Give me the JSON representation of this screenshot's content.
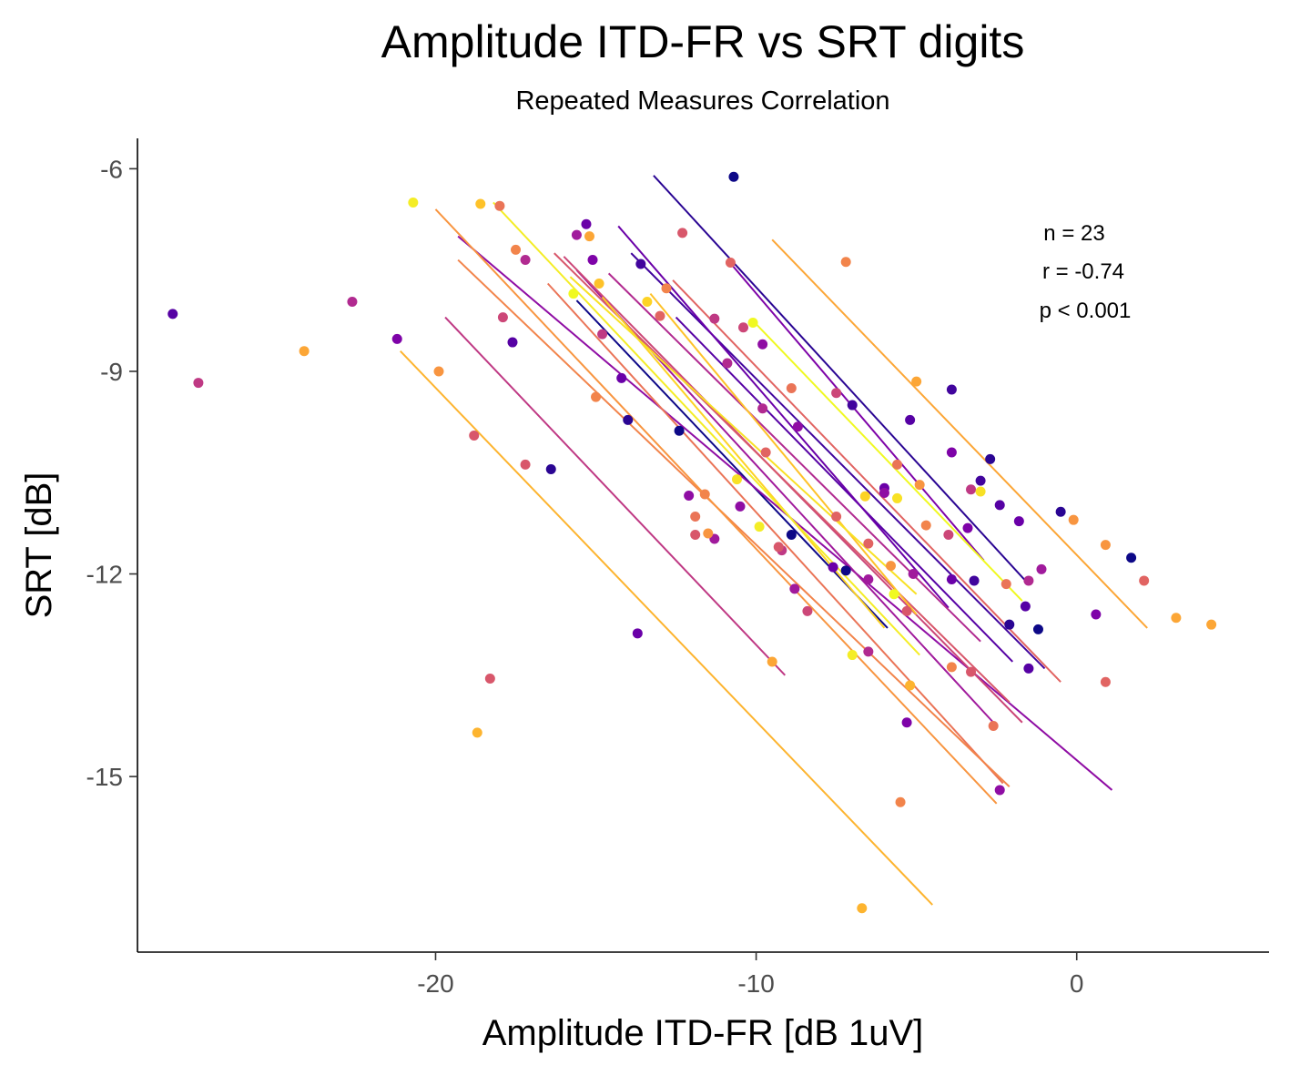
{
  "chart_data": {
    "type": "scatter",
    "title": "Amplitude ITD-FR vs SRT digits",
    "subtitle": "Repeated Measures Correlation",
    "xlabel": "Amplitude ITD-FR [dB 1uV]",
    "ylabel": "SRT [dB]",
    "xlim": [
      -29.3,
      6.0
    ],
    "ylim": [
      -17.6,
      -5.55
    ],
    "xticks": [
      -20,
      -10,
      0
    ],
    "xtick_labels": [
      "-20",
      "-10",
      "0"
    ],
    "yticks": [
      -6,
      -9,
      -12,
      -15
    ],
    "ytick_labels": [
      "-6",
      "-9",
      "-12",
      "-15"
    ],
    "grid": false,
    "legend": "none",
    "annotations": [
      "n = 23",
      "r = -0.74",
      "p < 0.001"
    ],
    "colormap": "plasma",
    "series": [
      {
        "color": "#0d0887",
        "points": [
          [
            -10.7,
            -6.12
          ],
          [
            -12.4,
            -9.88
          ],
          [
            -8.9,
            -11.42
          ],
          [
            -7.2,
            -11.95
          ],
          [
            1.7,
            -11.76
          ],
          [
            -1.2,
            -12.82
          ]
        ],
        "line": [
          [
            -15.6,
            -7.95
          ],
          [
            -5.9,
            -12.8
          ]
        ]
      },
      {
        "color": "#2a0593",
        "points": [
          [
            -16.4,
            -10.45
          ],
          [
            -14.0,
            -9.72
          ],
          [
            -2.7,
            -10.3
          ],
          [
            -0.5,
            -11.08
          ],
          [
            -2.1,
            -12.75
          ]
        ],
        "line": [
          [
            -13.2,
            -6.1
          ],
          [
            -1.6,
            -12.1
          ]
        ]
      },
      {
        "color": "#41049d",
        "points": [
          [
            -13.6,
            -7.41
          ],
          [
            -7.0,
            -9.5
          ],
          [
            -3.9,
            -9.27
          ],
          [
            -3.0,
            -10.62
          ],
          [
            -3.2,
            -12.1
          ]
        ],
        "line": [
          [
            -13.9,
            -7.25
          ],
          [
            -1.0,
            -13.4
          ]
        ]
      },
      {
        "color": "#5601a4",
        "points": [
          [
            -28.2,
            -8.15
          ],
          [
            -17.6,
            -8.57
          ],
          [
            -5.2,
            -9.72
          ],
          [
            -2.4,
            -10.98
          ],
          [
            -1.6,
            -12.48
          ],
          [
            -1.5,
            -13.4
          ]
        ],
        "line": [
          [
            -12.5,
            -8.2
          ],
          [
            -2.0,
            -13.3
          ]
        ]
      },
      {
        "color": "#6a00a8",
        "points": [
          [
            -15.3,
            -6.82
          ],
          [
            -14.2,
            -9.1
          ],
          [
            -13.7,
            -12.88
          ],
          [
            -7.6,
            -11.9
          ],
          [
            -6.0,
            -10.73
          ],
          [
            -3.9,
            -12.08
          ],
          [
            -1.8,
            -11.22
          ]
        ],
        "line": [
          [
            -14.3,
            -6.85
          ],
          [
            -4.0,
            -12.5
          ]
        ]
      },
      {
        "color": "#7e03a8",
        "points": [
          [
            -21.2,
            -8.52
          ],
          [
            -15.1,
            -7.35
          ],
          [
            -5.3,
            -14.2
          ],
          [
            -3.9,
            -10.2
          ],
          [
            -3.4,
            -11.32
          ],
          [
            0.6,
            -12.6
          ]
        ],
        "line": [
          [
            -10.8,
            -7.4
          ],
          [
            -2.9,
            -11.8
          ]
        ]
      },
      {
        "color": "#8f0da4",
        "points": [
          [
            -12.1,
            -10.84
          ],
          [
            -10.5,
            -11.0
          ],
          [
            -9.8,
            -8.6
          ],
          [
            -8.7,
            -9.82
          ],
          [
            -6.0,
            -10.8
          ],
          [
            -2.4,
            -15.2
          ]
        ],
        "line": [
          [
            -19.3,
            -7.0
          ],
          [
            1.1,
            -15.2
          ]
        ]
      },
      {
        "color": "#a01a9c",
        "points": [
          [
            -15.6,
            -6.98
          ],
          [
            -11.3,
            -11.48
          ],
          [
            -8.8,
            -12.22
          ],
          [
            -6.5,
            -12.08
          ],
          [
            -5.1,
            -12.0
          ],
          [
            -1.1,
            -11.93
          ]
        ],
        "line": [
          [
            -15.6,
            -7.5
          ],
          [
            -2.6,
            -14.2
          ]
        ]
      },
      {
        "color": "#b12a90",
        "points": [
          [
            -22.6,
            -7.97
          ],
          [
            -17.2,
            -7.35
          ],
          [
            -10.9,
            -8.88
          ],
          [
            -9.8,
            -9.55
          ],
          [
            -6.5,
            -13.15
          ],
          [
            -1.5,
            -12.1
          ]
        ],
        "line": [
          [
            -14.6,
            -7.55
          ],
          [
            -3.0,
            -13.0
          ]
        ]
      },
      {
        "color": "#bf3984",
        "points": [
          [
            -27.4,
            -9.17
          ],
          [
            -14.8,
            -8.45
          ],
          [
            -11.3,
            -8.22
          ],
          [
            -9.2,
            -11.65
          ],
          [
            -3.3,
            -10.75
          ]
        ],
        "line": [
          [
            -19.7,
            -8.2
          ],
          [
            -9.1,
            -13.5
          ]
        ]
      },
      {
        "color": "#cc4778",
        "points": [
          [
            -17.9,
            -8.2
          ],
          [
            -10.4,
            -8.35
          ],
          [
            -8.4,
            -12.55
          ],
          [
            -7.5,
            -9.32
          ],
          [
            -4.0,
            -11.42
          ]
        ],
        "line": [
          [
            -16.0,
            -7.3
          ],
          [
            -1.7,
            -14.2
          ]
        ]
      },
      {
        "color": "#d8576b",
        "points": [
          [
            -18.8,
            -9.95
          ],
          [
            -18.3,
            -13.55
          ],
          [
            -17.2,
            -10.38
          ],
          [
            -11.9,
            -11.42
          ],
          [
            -12.3,
            -6.95
          ],
          [
            -9.3,
            -11.6
          ],
          [
            -5.3,
            -12.55
          ],
          [
            -3.3,
            -13.45
          ]
        ],
        "line": [
          [
            -16.3,
            -7.25
          ],
          [
            -2.1,
            -13.9
          ]
        ]
      },
      {
        "color": "#e16462",
        "points": [
          [
            -13.0,
            -8.18
          ],
          [
            -10.8,
            -7.39
          ],
          [
            -9.7,
            -10.2
          ],
          [
            -7.5,
            -11.15
          ],
          [
            -6.5,
            -11.55
          ],
          [
            0.9,
            -13.6
          ],
          [
            2.1,
            -12.1
          ]
        ],
        "line": [
          [
            -12.6,
            -7.65
          ],
          [
            -0.5,
            -13.6
          ]
        ]
      },
      {
        "color": "#ea7457",
        "points": [
          [
            -18.0,
            -6.55
          ],
          [
            -11.9,
            -11.15
          ],
          [
            -8.9,
            -9.25
          ],
          [
            -5.6,
            -10.38
          ],
          [
            -2.6,
            -14.25
          ],
          [
            -2.2,
            -12.15
          ]
        ],
        "line": [
          [
            -16.5,
            -7.7
          ],
          [
            -2.3,
            -15.1
          ]
        ]
      },
      {
        "color": "#f2844b",
        "points": [
          [
            -17.5,
            -7.2
          ],
          [
            -15.0,
            -9.38
          ],
          [
            -12.8,
            -7.77
          ],
          [
            -11.6,
            -10.82
          ],
          [
            -7.2,
            -7.38
          ],
          [
            -5.5,
            -15.38
          ],
          [
            -4.7,
            -11.28
          ],
          [
            -3.9,
            -13.38
          ]
        ],
        "line": [
          [
            -19.3,
            -7.35
          ],
          [
            -2.1,
            -15.15
          ]
        ]
      },
      {
        "color": "#f89540",
        "points": [
          [
            -19.9,
            -9.0
          ],
          [
            -11.5,
            -11.4
          ],
          [
            -5.8,
            -11.88
          ],
          [
            -4.9,
            -10.68
          ],
          [
            -0.1,
            -11.2
          ],
          [
            0.9,
            -11.57
          ]
        ],
        "line": [
          [
            -20.0,
            -6.6
          ],
          [
            -2.5,
            -15.4
          ]
        ]
      },
      {
        "color": "#fca636",
        "points": [
          [
            -24.1,
            -8.7
          ],
          [
            -15.2,
            -7.0
          ],
          [
            -9.5,
            -13.3
          ],
          [
            -5.0,
            -9.15
          ],
          [
            3.1,
            -12.65
          ],
          [
            4.2,
            -12.75
          ]
        ],
        "line": [
          [
            -9.5,
            -7.05
          ],
          [
            2.2,
            -12.8
          ]
        ]
      },
      {
        "color": "#fdb42f",
        "points": [
          [
            -18.7,
            -14.35
          ],
          [
            -6.7,
            -16.95
          ],
          [
            -5.2,
            -13.65
          ]
        ],
        "line": [
          [
            -21.1,
            -8.7
          ],
          [
            -4.5,
            -16.9
          ]
        ]
      },
      {
        "color": "#fec229",
        "points": [
          [
            -18.6,
            -6.52
          ],
          [
            -14.9,
            -7.7
          ]
        ],
        "line": [
          [
            -13.3,
            -7.85
          ],
          [
            -5.0,
            -12.6
          ]
        ]
      },
      {
        "color": "#fdd325",
        "points": [
          [
            -13.4,
            -7.97
          ],
          [
            -6.6,
            -10.85
          ]
        ],
        "line": [
          [
            -14.8,
            -7.9
          ],
          [
            -6.0,
            -12.8
          ]
        ]
      },
      {
        "color": "#f8e125",
        "points": [
          [
            -10.6,
            -10.6
          ],
          [
            -5.6,
            -10.88
          ],
          [
            -3.0,
            -10.78
          ]
        ],
        "line": [
          [
            -15.8,
            -7.6
          ],
          [
            -5.0,
            -12.3
          ]
        ]
      },
      {
        "color": "#f4ed26",
        "points": [
          [
            -20.7,
            -6.5
          ],
          [
            -9.9,
            -11.3
          ],
          [
            -7.0,
            -13.2
          ]
        ],
        "line": [
          [
            -18.2,
            -6.5
          ],
          [
            -4.9,
            -13.2
          ]
        ]
      },
      {
        "color": "#f0f921",
        "points": [
          [
            -15.7,
            -7.85
          ],
          [
            -10.1,
            -8.28
          ],
          [
            -5.7,
            -12.3
          ]
        ],
        "line": [
          [
            -10.0,
            -8.3
          ],
          [
            -1.7,
            -12.4
          ]
        ]
      }
    ]
  }
}
